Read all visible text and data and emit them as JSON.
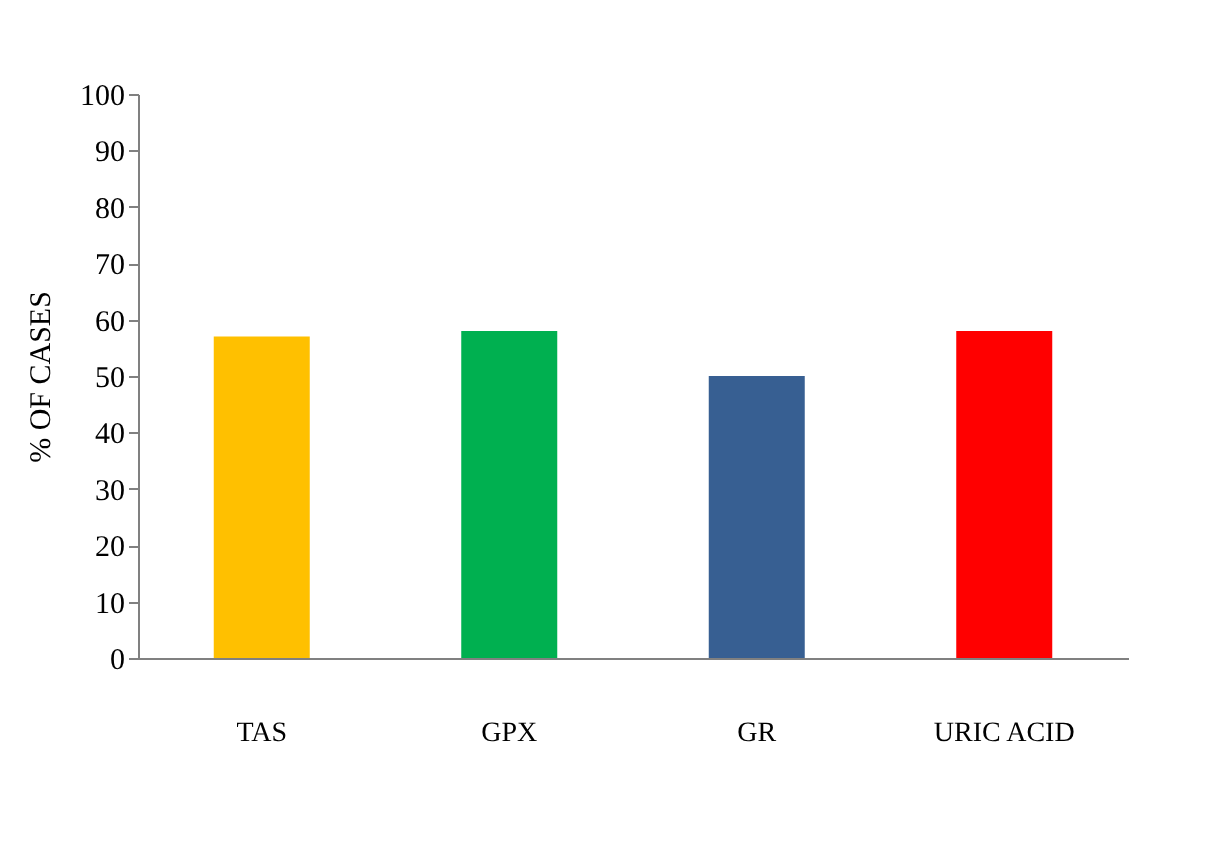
{
  "chart_data": {
    "type": "bar",
    "ylabel": "% OF CASES",
    "categories": [
      "TAS",
      "GPX",
      "GR",
      "URIC ACID"
    ],
    "values": [
      57,
      58,
      50,
      58
    ],
    "colors": [
      "#ffc000",
      "#00b050",
      "#375f92",
      "#ff0000"
    ],
    "ylim": [
      0,
      100
    ],
    "yticks": [
      0,
      10,
      20,
      30,
      40,
      50,
      60,
      70,
      80,
      90,
      100
    ],
    "grid": false
  }
}
